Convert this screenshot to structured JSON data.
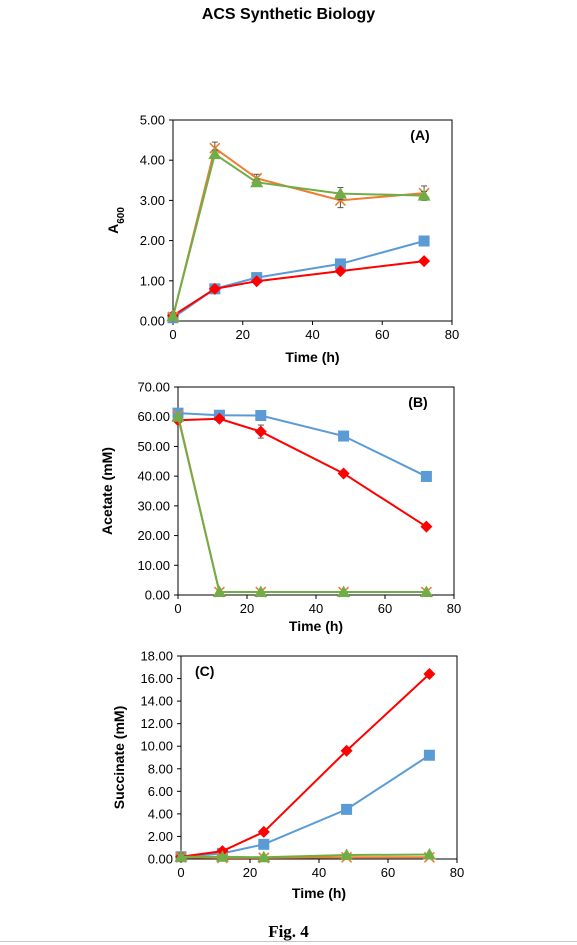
{
  "header": "ACS Synthetic Biology",
  "caption": "Fig. 4",
  "colors": {
    "blue": "#5b9bd5",
    "red": "#ff0000",
    "orange": "#ed7d31",
    "green": "#70ad47"
  },
  "chart_data": [
    {
      "type": "line",
      "panel_label": "(A)",
      "xlabel": "Time (h)",
      "ylabel": "A",
      "ylabel_sub": "600",
      "xlim": [
        0,
        80
      ],
      "ylim": [
        0,
        5
      ],
      "xticks": [
        "0",
        "20",
        "40",
        "60",
        "80"
      ],
      "yticks": [
        "0.00",
        "1.00",
        "2.00",
        "3.00",
        "4.00",
        "5.00"
      ],
      "grid": false,
      "series": [
        {
          "marker": "square",
          "color": "#5b9bd5",
          "x": [
            0,
            12,
            24,
            48,
            72
          ],
          "y": [
            0.08,
            0.8,
            1.08,
            1.42,
            1.99
          ]
        },
        {
          "marker": "diamond",
          "color": "#ff0000",
          "x": [
            0,
            12,
            24,
            48,
            72
          ],
          "y": [
            0.13,
            0.8,
            0.99,
            1.24,
            1.49
          ]
        },
        {
          "marker": "x",
          "color": "#ed7d31",
          "x": [
            0,
            12,
            24,
            48,
            72
          ],
          "y": [
            0.1,
            4.3,
            3.55,
            3.0,
            3.18
          ],
          "err": [
            0,
            0.15,
            0.1,
            0.18,
            0.18
          ]
        },
        {
          "marker": "triangle",
          "color": "#70ad47",
          "x": [
            0,
            12,
            24,
            48,
            72
          ],
          "y": [
            0.12,
            4.15,
            3.45,
            3.17,
            3.12
          ],
          "err": [
            0,
            0.1,
            0.08,
            0.15,
            0.1
          ]
        }
      ]
    },
    {
      "type": "line",
      "panel_label": "(B)",
      "xlabel": "Time (h)",
      "ylabel": "Acetate (mM)",
      "xlim": [
        0,
        80
      ],
      "ylim": [
        0,
        70
      ],
      "xticks": [
        "0",
        "20",
        "40",
        "60",
        "80"
      ],
      "yticks": [
        "0.00",
        "10.00",
        "20.00",
        "30.00",
        "40.00",
        "50.00",
        "60.00",
        "70.00"
      ],
      "grid": false,
      "series": [
        {
          "marker": "square",
          "color": "#5b9bd5",
          "x": [
            0,
            12,
            24,
            48,
            72
          ],
          "y": [
            61.2,
            60.5,
            60.4,
            53.5,
            39.9
          ]
        },
        {
          "marker": "diamond",
          "color": "#ff0000",
          "x": [
            0,
            12,
            24,
            48,
            72
          ],
          "y": [
            58.8,
            59.3,
            55.0,
            40.9,
            23.0
          ],
          "err": [
            0,
            0,
            2.2,
            0,
            0
          ]
        },
        {
          "marker": "x",
          "color": "#ed7d31",
          "x": [
            0,
            12,
            24,
            48,
            72
          ],
          "y": [
            60.5,
            1.0,
            1.0,
            1.0,
            1.0
          ]
        },
        {
          "marker": "triangle",
          "color": "#70ad47",
          "x": [
            0,
            12,
            24,
            48,
            72
          ],
          "y": [
            60.0,
            1.0,
            1.0,
            1.0,
            1.0
          ]
        }
      ]
    },
    {
      "type": "line",
      "panel_label": "(C)",
      "xlabel": "Time (h)",
      "ylabel": "Succinate (mM)",
      "xlim": [
        0,
        80
      ],
      "ylim": [
        0,
        18
      ],
      "xticks": [
        "0",
        "20",
        "40",
        "60",
        "80"
      ],
      "yticks": [
        "0.00",
        "2.00",
        "4.00",
        "6.00",
        "8.00",
        "10.00",
        "12.00",
        "14.00",
        "16.00",
        "18.00"
      ],
      "grid": false,
      "series": [
        {
          "marker": "square",
          "color": "#5b9bd5",
          "x": [
            0,
            12,
            24,
            48,
            72
          ],
          "y": [
            0.2,
            0.5,
            1.3,
            4.4,
            9.2
          ]
        },
        {
          "marker": "diamond",
          "color": "#ff0000",
          "x": [
            0,
            12,
            24,
            48,
            72
          ],
          "y": [
            0.2,
            0.7,
            2.4,
            9.6,
            16.4
          ]
        },
        {
          "marker": "x",
          "color": "#ed7d31",
          "x": [
            0,
            12,
            24,
            48,
            72
          ],
          "y": [
            0.15,
            0.1,
            0.1,
            0.15,
            0.15
          ]
        },
        {
          "marker": "triangle",
          "color": "#70ad47",
          "x": [
            0,
            12,
            24,
            48,
            72
          ],
          "y": [
            0.2,
            0.2,
            0.15,
            0.35,
            0.4
          ]
        }
      ]
    }
  ]
}
